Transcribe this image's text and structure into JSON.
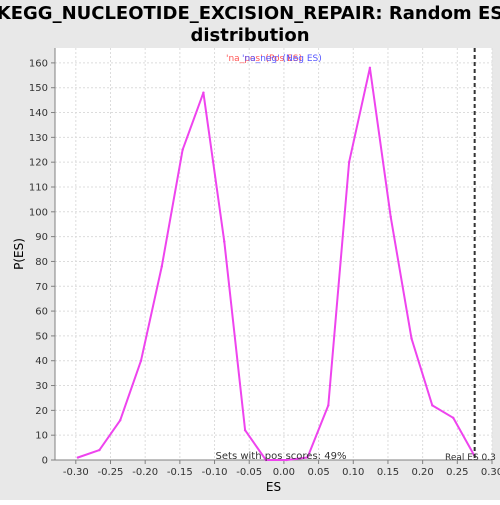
{
  "chart_data": {
    "type": "line",
    "title_line1": "KEGG_NUCLEOTIDE_EXCISION_REPAIR: Random ES",
    "title_line2": "distribution",
    "xlabel": "ES",
    "ylabel": "P(ES)",
    "xlim": [
      -0.33,
      0.3
    ],
    "ylim": [
      0,
      166
    ],
    "xticks": [
      -0.3,
      -0.25,
      -0.2,
      -0.15,
      -0.1,
      -0.05,
      0.0,
      0.05,
      0.1,
      0.15,
      0.2,
      0.25,
      0.3
    ],
    "xtick_labels": [
      "-0.30",
      "-0.25",
      "-0.20",
      "-0.15",
      "-0.10",
      "-0.05",
      "0.00",
      "0.05",
      "0.10",
      "0.15",
      "0.20",
      "0.25",
      "0.30"
    ],
    "yticks": [
      0,
      10,
      20,
      30,
      40,
      50,
      60,
      70,
      80,
      90,
      100,
      110,
      120,
      130,
      140,
      150,
      160
    ],
    "grid": true,
    "legend": {
      "placement": "top-center",
      "entries": [
        {
          "text": "'na_pos' (Pos ES)",
          "color": "#ff5555"
        },
        {
          "text": "'na_neg' (Neg ES)",
          "color": "#5555ff"
        }
      ]
    },
    "series": [
      {
        "color": "#ee44ee",
        "x": [
          -0.297,
          -0.266,
          -0.236,
          -0.206,
          -0.176,
          -0.146,
          -0.116,
          -0.086,
          -0.056,
          -0.026,
          0.004,
          0.034,
          0.064,
          0.094,
          0.124,
          0.154,
          0.184,
          0.214,
          0.244,
          0.274
        ],
        "y": [
          1,
          4,
          16,
          40,
          78,
          125,
          148,
          88,
          12,
          0,
          0,
          1,
          22,
          120,
          158,
          98,
          49,
          22,
          17,
          2
        ]
      }
    ],
    "real_es": {
      "value": 0.275,
      "label": "Real ES 0.3"
    },
    "footer_note": "Sets with pos scores: 49%"
  },
  "colors": {
    "background": "#e8e8e8",
    "plot_background": "#ffffff",
    "grid": "#dcdcdc",
    "axis": "#808080",
    "text": "#000000",
    "tick_text": "#333333",
    "marker_line": "#333333"
  }
}
